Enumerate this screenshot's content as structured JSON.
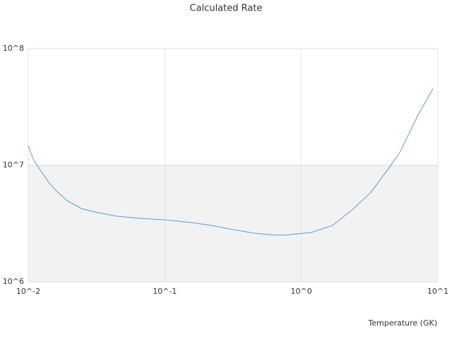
{
  "chart_data": {
    "type": "line",
    "title": "Calculated Rate",
    "x_label": "Temperature (GK)",
    "xscale": "log",
    "yscale": "log",
    "grid": true,
    "band_color": "#f2f2f2",
    "xlim": [
      0.01,
      10
    ],
    "ylim": [
      1000000,
      100000000
    ],
    "xticks": [
      {
        "value": 0.01,
        "label": "10^-2"
      },
      {
        "value": 0.1,
        "label": "10^-1"
      },
      {
        "value": 1,
        "label": "10^0"
      },
      {
        "value": 10,
        "label": "10^1"
      }
    ],
    "yticks": [
      {
        "value": 1000000,
        "label": "10^6"
      },
      {
        "value": 10000000,
        "label": "10^7"
      },
      {
        "value": 100000000,
        "label": "10^8"
      }
    ],
    "series": [
      {
        "color": "#5b9bd5",
        "x": [
          0.01,
          0.0109,
          0.0124,
          0.0143,
          0.0161,
          0.0193,
          0.0245,
          0.031,
          0.0444,
          0.0675,
          0.1,
          0.156,
          0.222,
          0.318,
          0.455,
          0.578,
          0.733,
          1.18,
          1.69,
          2.42,
          3.26,
          4.14,
          5.25,
          7.08,
          9.2
        ],
        "values": [
          14700000,
          11200000,
          8900000,
          7000000,
          6000000,
          4950000,
          4250000,
          3960000,
          3650000,
          3500000,
          3400000,
          3220000,
          3040000,
          2800000,
          2610000,
          2540000,
          2510000,
          2650000,
          3040000,
          4250000,
          5930000,
          8650000,
          12800000,
          26300000,
          45300000
        ]
      }
    ]
  }
}
